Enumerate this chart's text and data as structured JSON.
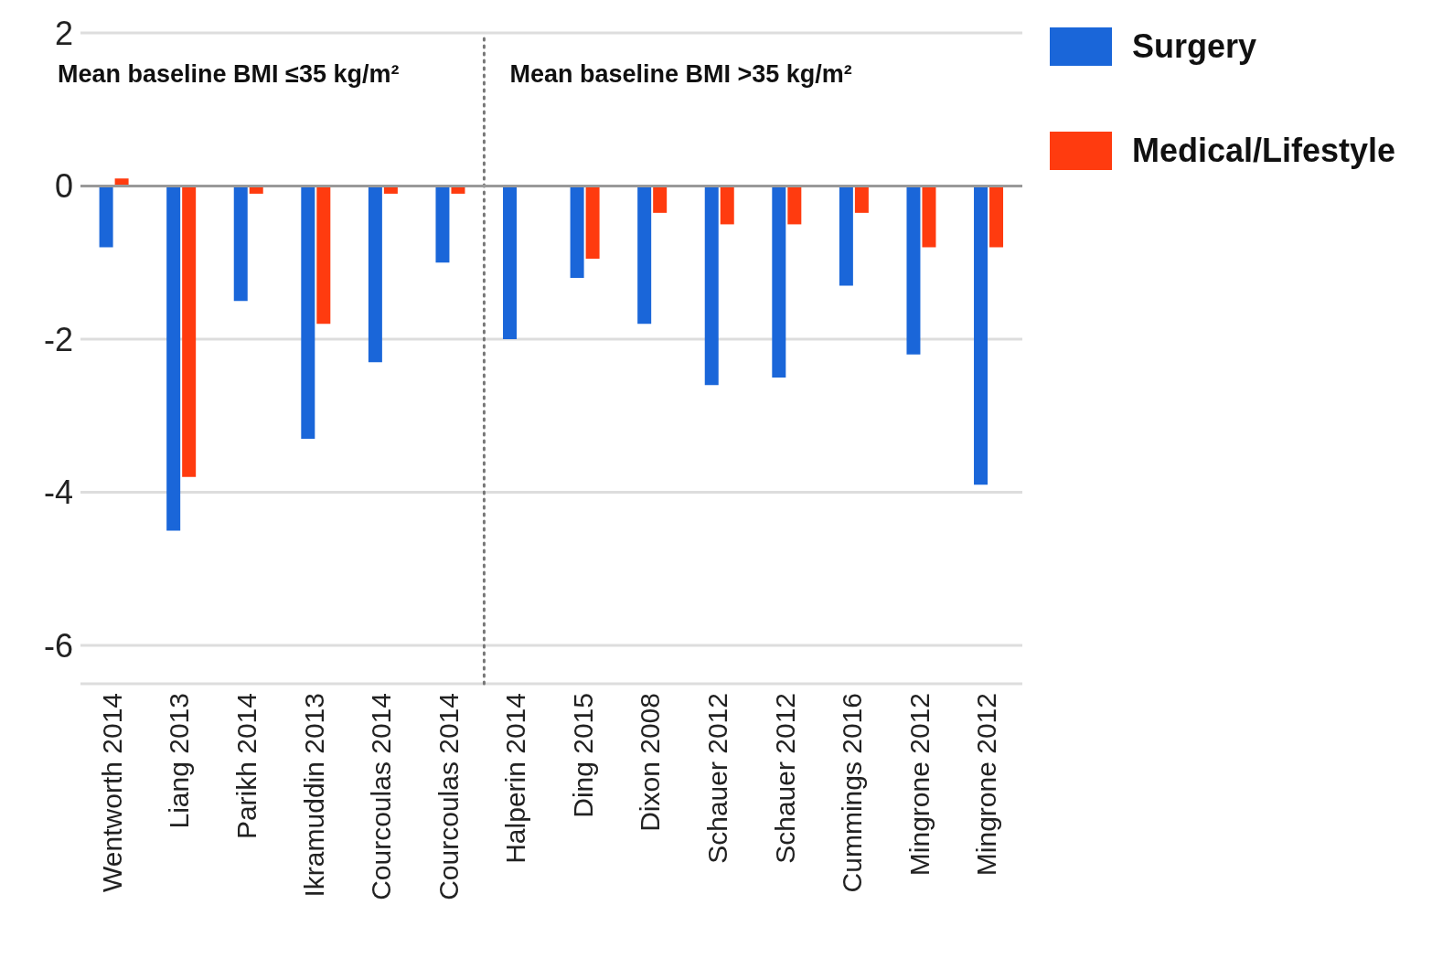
{
  "chart_data": {
    "type": "bar",
    "categories": [
      "Wentworth 2014",
      "Liang 2013",
      "Parikh 2014",
      "Ikramuddin 2013",
      "Courcoulas 2014",
      "Courcoulas 2014",
      "Halperin 2014",
      "Ding 2015",
      "Dixon 2008",
      "Schauer 2012",
      "Schauer 2012",
      "Cummings 2016",
      "Mingrone 2012",
      "Mingrone 2012"
    ],
    "series": [
      {
        "name": "Surgery",
        "color": "#1a66d9",
        "values": [
          -0.8,
          -4.5,
          -1.5,
          -3.3,
          -2.3,
          -1.0,
          -2.0,
          -1.2,
          -1.8,
          -2.6,
          -2.5,
          -1.3,
          -2.2,
          -3.9
        ]
      },
      {
        "name": "Medical/Lifestyle",
        "color": "#ff3b0f",
        "values": [
          0.1,
          -3.8,
          -0.1,
          -1.8,
          -0.1,
          -0.1,
          null,
          -0.95,
          -0.35,
          -0.5,
          -0.5,
          -0.35,
          -0.8,
          -0.8
        ]
      }
    ],
    "ylim": [
      -6.5,
      2
    ],
    "yticks": [
      -6,
      -4,
      -2,
      0,
      2
    ],
    "grid": "y",
    "legend": "top right",
    "ref_lines": [
      {
        "axis": "x",
        "value": "Halperin 2014",
        "color": "#777777",
        "line_style": "dotted"
      },
      {
        "axis": "y",
        "value": 0,
        "color": "#999999"
      }
    ],
    "annotations": [
      "Mean baseline BMI ≤35 kg/m²",
      "Mean baseline BMI >35 kg/m²"
    ]
  }
}
